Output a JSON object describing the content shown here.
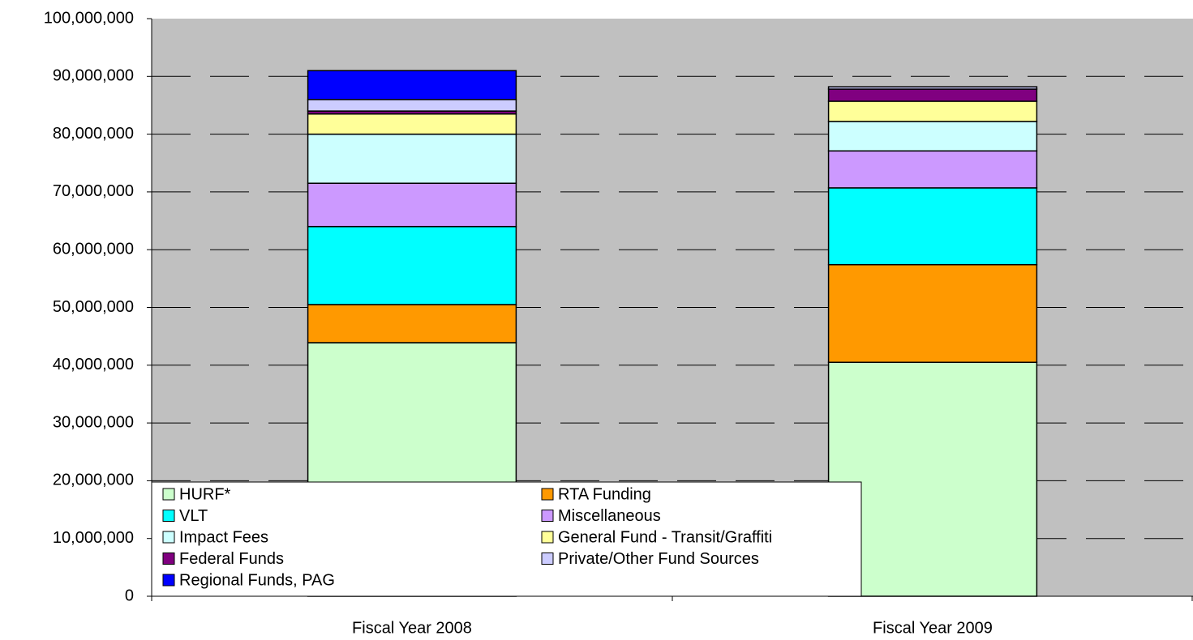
{
  "chart_data": {
    "type": "stacked_bar",
    "categories": [
      "Fiscal Year  2008",
      "Fiscal Year 2009"
    ],
    "series": [
      {
        "name": "HURF*",
        "color": "#ccffcc",
        "values": [
          43.9,
          40.5
        ]
      },
      {
        "name": "RTA Funding",
        "color": "#ff9900",
        "values": [
          6.6,
          16.9
        ]
      },
      {
        "name": "VLT",
        "color": "#00ffff",
        "values": [
          13.5,
          13.3
        ]
      },
      {
        "name": "Miscellaneous",
        "color": "#cc99ff",
        "values": [
          7.5,
          6.4
        ]
      },
      {
        "name": "Impact Fees",
        "color": "#ccffff",
        "values": [
          8.5,
          5.1
        ]
      },
      {
        "name": "General Fund - Transit/Graffiti",
        "color": "#ffff99",
        "values": [
          3.5,
          3.5
        ]
      },
      {
        "name": "Federal Funds",
        "color": "#800080",
        "values": [
          0.5,
          2.1
        ]
      },
      {
        "name": "Private/Other Fund Sources",
        "color": "#ccccff",
        "values": [
          2.0,
          0.4
        ]
      },
      {
        "name": "Regional Funds, PAG",
        "color": "#0000ff",
        "values": [
          5.0,
          0
        ]
      }
    ],
    "ylim": [
      0,
      100
    ],
    "yticks": [
      0,
      {
        "value": 10,
        "label": "10,000,000"
      },
      {
        "value": 20,
        "label": "20,000,000"
      },
      {
        "value": 30,
        "label": "30,000,000"
      },
      {
        "value": 40,
        "label": "40,000,000"
      },
      {
        "value": 50,
        "label": "50,000,000"
      },
      {
        "value": 60,
        "label": "60,000,000"
      },
      {
        "value": 70,
        "label": "70,000,000"
      },
      {
        "value": 80,
        "label": "80,000,000"
      },
      {
        "value": 90,
        "label": "90,000,000"
      },
      {
        "value": 100,
        "label": "100,000,000"
      }
    ],
    "grid": true,
    "legend": "lower left",
    "background": "#c0c0c0"
  }
}
